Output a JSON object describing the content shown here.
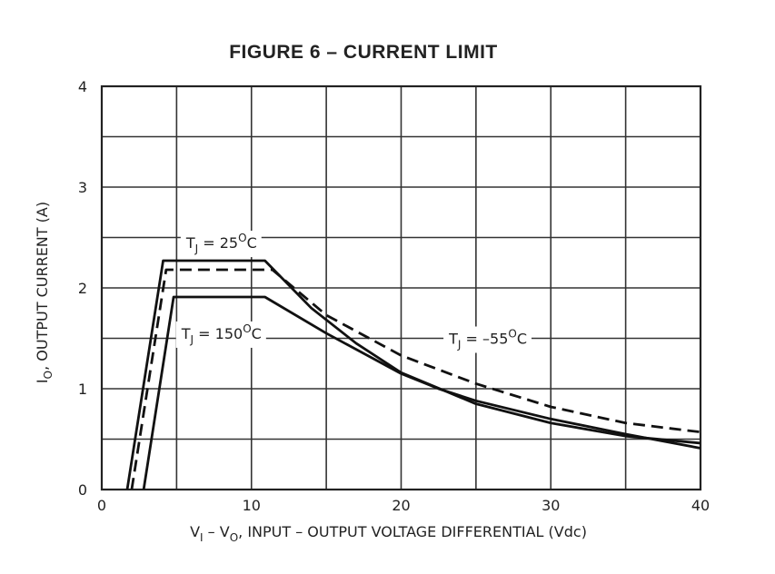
{
  "chart_data": {
    "type": "line",
    "title": "FIGURE 6 – CURRENT LIMIT",
    "xlabel": {
      "part1": "V",
      "sub1": "I",
      "part2": " – V",
      "sub2": "O",
      "part3": ", INPUT – OUTPUT VOLTAGE DIFFERENTIAL (Vdc)"
    },
    "ylabel": {
      "part1": "I",
      "sub1": "O",
      "part2": ", OUTPUT CURRENT (A)"
    },
    "xlim": [
      0,
      40
    ],
    "ylim": [
      0,
      4
    ],
    "x_ticks": [
      "0",
      "10",
      "20",
      "30",
      "40"
    ],
    "y_ticks": [
      "0",
      "1",
      "2",
      "3",
      "4"
    ],
    "grid": true,
    "series": [
      {
        "name": "TJ = 25°C",
        "style": "solid",
        "points": [
          [
            1.7,
            0
          ],
          [
            4.1,
            2.27
          ],
          [
            10.9,
            2.27
          ],
          [
            14.0,
            1.8
          ],
          [
            17.0,
            1.45
          ],
          [
            20.0,
            1.16
          ],
          [
            25.0,
            0.85
          ],
          [
            30.0,
            0.66
          ],
          [
            35.0,
            0.53
          ],
          [
            40.0,
            0.46
          ]
        ]
      },
      {
        "name": "TJ = 150°C",
        "style": "solid",
        "points": [
          [
            2.8,
            0
          ],
          [
            4.8,
            1.91
          ],
          [
            10.9,
            1.91
          ],
          [
            15.0,
            1.55
          ],
          [
            20.0,
            1.15
          ],
          [
            22.5,
            1.0
          ],
          [
            25.0,
            0.88
          ],
          [
            30.0,
            0.7
          ],
          [
            35.0,
            0.55
          ],
          [
            40.0,
            0.41
          ]
        ]
      },
      {
        "name": "TJ = −55°C",
        "style": "dashed",
        "points": [
          [
            2.0,
            0
          ],
          [
            4.3,
            2.18
          ],
          [
            11.4,
            2.18
          ],
          [
            15.0,
            1.73
          ],
          [
            20.0,
            1.33
          ],
          [
            25.0,
            1.05
          ],
          [
            30.0,
            0.82
          ],
          [
            35.0,
            0.66
          ],
          [
            40.0,
            0.57
          ]
        ]
      }
    ],
    "annotations": [
      {
        "main": "T",
        "sub": "J",
        "rest": " = 25",
        "sup": "O",
        "unit": "C",
        "at": [
          8.0,
          2.45
        ]
      },
      {
        "main": "T",
        "sub": "J",
        "rest": " = 150",
        "sup": "O",
        "unit": "C",
        "at": [
          8.0,
          1.55
        ]
      },
      {
        "main": "T",
        "sub": "J",
        "rest": " = –55",
        "sup": "O",
        "unit": "C",
        "at": [
          25.8,
          1.5
        ]
      }
    ]
  }
}
